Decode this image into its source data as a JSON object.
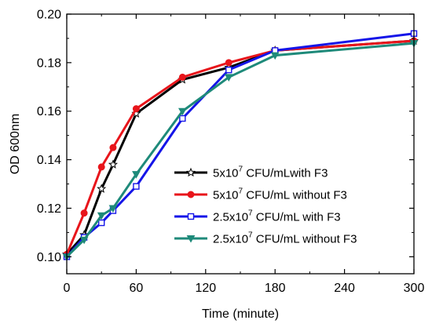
{
  "chart_data": {
    "type": "line",
    "xlabel": "Time (minute)",
    "ylabel": "OD 600nm",
    "xlim": [
      0,
      300
    ],
    "ylim": [
      0.093,
      0.2
    ],
    "x_ticks": [
      "0",
      "60",
      "120",
      "180",
      "240",
      "300"
    ],
    "y_ticks": [
      "0.10",
      "0.12",
      "0.14",
      "0.16",
      "0.18",
      "0.20"
    ],
    "legend_position": "center-right",
    "series": [
      {
        "name": "5x10^7 CFU/mLwith F3",
        "label_parts": [
          "5x10",
          "7",
          " CFU/mLwith F3"
        ],
        "color": "#000000",
        "marker": "star",
        "x": [
          0,
          15,
          30,
          40,
          60,
          100,
          140,
          180,
          300
        ],
        "y": [
          0.101,
          0.109,
          0.128,
          0.138,
          0.159,
          0.173,
          0.178,
          0.185,
          0.189
        ]
      },
      {
        "name": "5x10^7 CFU/mL without F3",
        "label_parts": [
          "5x10",
          "7",
          " CFU/mL without F3"
        ],
        "color": "#e8151b",
        "marker": "circle",
        "x": [
          0,
          15,
          30,
          40,
          60,
          100,
          140,
          180,
          300
        ],
        "y": [
          0.101,
          0.118,
          0.137,
          0.145,
          0.161,
          0.174,
          0.18,
          0.185,
          0.189
        ]
      },
      {
        "name": "2.5x10^7 CFU/mL with F3",
        "label_parts": [
          "2.5x10",
          "7",
          " CFU/mL with F3"
        ],
        "color": "#1515e8",
        "marker": "square",
        "x": [
          0,
          15,
          30,
          40,
          60,
          100,
          140,
          180,
          300
        ],
        "y": [
          0.1,
          0.108,
          0.114,
          0.119,
          0.129,
          0.157,
          0.177,
          0.185,
          0.192
        ]
      },
      {
        "name": "2.5x10^7 CFU/mL without F3",
        "label_parts": [
          "2.5x10",
          "7",
          " CFU/mL without F3"
        ],
        "color": "#1e8a7a",
        "marker": "triangle-down",
        "x": [
          0,
          15,
          30,
          40,
          60,
          100,
          140,
          180,
          300
        ],
        "y": [
          0.1,
          0.107,
          0.117,
          0.12,
          0.134,
          0.16,
          0.174,
          0.183,
          0.188
        ]
      }
    ]
  }
}
